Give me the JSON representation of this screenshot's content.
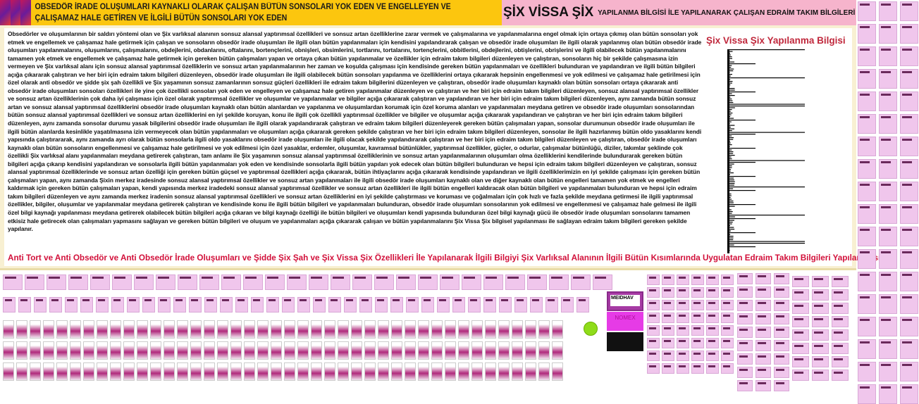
{
  "header": {
    "left_text": "OBSEDÖR İRADE OLUŞUMLARI KAYNAKLI OLARAK ÇALIŞAN BÜTÜN SONSOLARI YOK EDEN VE ENGELLEYEN VE ÇALIŞAMAZ HALE GETİREN VE İLGİLİ BÜTÜN SONSOLARI YOK EDEN",
    "brand": "ŞİX VİSSA ŞİX",
    "subtitle": "YAPILANMA BİLGİSİ İLE YAPILANARAK ÇALIŞAN EDRAİM TAKIM BİLGİLERİ"
  },
  "main": {
    "paragraph": "Obsedörler ve oluşumlarının bir saldırı yöntemi olan ve Şix varlıksal alanının sonsuz alansal yaptırımsal özellikleri ve sonsuz artan özelliklerine zarar vermek ve çalışmalarına ve yapılanmalarına engel olmak için ortaya çıkmış olan bütün sonsoları yok etmek ve engellemek ve çalışamaz hale getirmek için çalışan ve sonsoların obsedör irade oluşumları ile ilgili olan bütün yapılanmaları için kendisini yapılandırarak çalışan ve obsedör irade oluşumları ile ilgili olarak yapılanmış olan bütün obsedör irade oluşumları yapılanmalarını, oluşumlarını, çalışmalarını, obdejlerini, obdanlarını, oftalarını, bortençlerini, obnişleri, obsimlerini, tortlarını, tortalarını, tortençlerini, obbitlerini, obdejlerini, obtişlerini, obrişlerini ve ilgili olabilecek bütün yapılanmalarını tamamen yok etmek ve engellemek ve çalışamaz hale getirmek için gereken bütün çalışmaları yapan ve ortaya çıkan bütün yapılanmalar ve özellikler için edraim takım bilgileri düzenleyen ve çalıştıran, sonsoların hiç bir şekilde çalışmasına izin vermeyen ve Şix varlıksal alanı için sonsuz alansal yaptırımsal özelliklerin ve sonsuz artan yapılanmalarının her zaman ve koşulda çalışması için kendisinde gereken bütün yapılanmaları ve özellikleri bulunduran ve yapılandıran ve ilgili bütün bilgileri açığa çıkararak çalıştıran ve her biri için edraim takım bilgileri düzenleyen, obsedör irade oluşumları ile ilgili olabilecek bütün sonsoları yapılanma ve özelliklerini ortaya çıkararak hepsinin engellenmesi ve yok edilmesi ve çalışamaz hale getirilmesi için özel olarak anti obsedör ve şidde şix şah özellikli ve Şix yaşamının sonsuz zamanlarının sonsuz güçleri özellikleri ile edraim takım bilgilerini düzenleyen ve çalıştıran, obsedör irade oluşumları kaynaklı olan bütün sonsoları ortaya çıkararak anti obsedör irade oluşumları sonsoları özellikleri ile yine çok özellikli sonsoları yok eden ve engelleyen ve çalışamaz hale getiren yapılanmalar düzenleyen ve çalıştıran ve her biri için edraim takım bilgileri düzenleyen, sonsuz alansal yaptırımsal özellikler ve sonsuz artan özelliklerinin çok daha iyi çalışması için özel olarak yaptırımsal özellikler ve oluşumlar ve yapılanmalar ve bilgiler açığa çıkararak çalıştıran ve yapılandıran ve her biri için edraim takım bilgileri düzenleyen, aynı zamanda bütün sonsuz artan ve sonsuz alansal yaptırımsal özelliklerini obsedör irade oluşumları kaynaklı olan bütün alanlardan ve yapılanma ve oluşumlardan korumak için özel koruma alanları ve yapılanmaları meydana getiren ve obsedör irade oluşumları sonsolarından bütün sonsuz alansal yaptırımsal özellikleri ve sonsuz artan özelliklerini en iyi şekilde koruyan, konu ile ilgili çok özellikli yaptırımsal özellikler ve bilgiler ve oluşumlar açığa çıkararak yapılandıran ve çalıştıran ve her biri için edraim takım bilgileri düzenleyen, aynı zamanda sonsolar durumu yasak bilgilerini obsedör irade oluşumları ile ilgili olarak yapılandırarak çalıştıran ve edraim takım bilgileri düzenleyerek gereken bütün çalışmaları yapan, sonsolar durumunun obsedör irade oluşumları ile ilgili bütün alanlarda kesinlikle yaşatılmasına izin vermeyecek olan bütün yapılanmaları ve oluşumları açığa çıkararak gereken şekilde çalıştıran ve her biri için edraim takım bilgileri düzenleyen, sonsolar ile ilgili hazırlanmış bütün oldo yasaklarını kendi yapısında çalıştırararak, aynı zamanda ayrı olarak bütün sonsolarla ilgili oldo yasaklarını obsedör irade oluşumları ile ilgili olacak şekilde yapılandırarak çalıştıran ve her biri için edraim takım bilgileri düzenleyen ve çalıştıran, obsedör irade oluşumları kaynaklı olan bütün sonsoların engellenmesi ve çalışamaz hale getirilmesi ve yok edilmesi için özel yasaklar, erdemler, oluşumlar, kavramsal bütünlükler, yaptırımsal özellikler, güçler, o odurlar, çalışmalar bütünlüğü, diziler, takımlar şeklinde çok özellikli Şix varlıksal alanı yapılanmaları meydana getirerek çalıştıran, tam anlamı ile Şix yaşamının sonsuz alansal yaptırımsal özelliklerinin ve sonsuz artan yapılanmalarının oluşumları olma özelliklerini kendilerinde bulundurarak gereken bütün bilgileri açığa çıkarıp kendisini yapılandıran ve sonsolarla ilgili bütün yapılanmaları yok eden ve kendisinde sonsolarla ilgili bütün yapıları yok edecek olan bütün bilgileri bulunduran ve hepsi için edraim takım bilgileri düzenleyen ve çalıştıran, sonsuz alansal yaptırımsal özelliklerinde ve sonsuz artan özelliği için gereken bütün güçsel ve yaptırımsal özellikleri açığa çıkararak, bütün ihtiyaçlarını açığa çıkararak kendisinde yapılandıran ve ilgili özelliklerimizin en iyi şekilde çalışması için gereken bütün çalışmaları yapan, aynı zamanda Şixin merkez iradesinde sonsuz alansal yaptırımsal özellikler ve sonsuz artan yapılanmaları ile ilgili obsedör irade oluşumları kaynaklı olan ve diğer kaynaklı olan bütün engelleri tamamen yok etmek ve engelleri kaldırmak için gereken bütün çalışmaları yapan, kendi yapısında merkez iradedeki sonsuz alansal yaptırımsal özellikler ve sonsuz artan özellikleri ile ilgili bütün engelleri kaldıracak olan bütün bilgileri ve yapılanmaları bulunduran ve hepsi için edraim takım bilgileri düzenleyen ve aynı zamanda merkez iradenin sonsuz alansal yaptırımsal özellikleri ve sonsuz artan özelliklerini en iyi şekilde çalıştırması ve koruması ve çoğalmaları için çok hızlı ve fazla şekilde meydana getirmesi ile ilgili yaptırımsal özellikler, bilgiler, oluşumlar ve yapılanmalar meydana getirerek çalıştıran ve kendisinde konu ile ilgili bütün bilgileri ve yapılanmaları bulunduran, obsedör irade oluşumları sonsolarının yok edilmesi ve engellenmesi ve çalışamaz hale gelmesi ile ilgili özel bilgi kaynağı yapılanması meydana getirerek olabilecek bütün bilgileri açığa çıkaran ve bilgi kaynağı özelliği ile bütün bilgileri ve oluşumları kendi yapısında bulunduran özel bilgi kaynağı gücü ile obsedör irade oluşumları sonsolarını tamamen etkisiz hale getirecek olan çalışmaları yapmasını sağlayan ve gereken bütün bilgileri ve oluşum ve yapılanmaları açığa çıkararak çalışan ve bütün yapılanmalarını Şix Vissa Şix bilgisel yapılanması ile sağlayan edraim takım bilgileri gereken şekilde yapılanır.",
    "bottom_title": "Anti Tort ve Anti Obsedör ve Anti Obsedör İrade Oluşumları ve Şidde Şix Şah ve Şix Vissa Şix Özellikleri İle Yapılanarak İlgili Bilgiyi Şix Varlıksal Alanının İlgili Bütün Kısımlarında Uygulatan Edraim Takım Bilgileri Yapılanması"
  },
  "side": {
    "title": "Şix Vissa Şix Yapılanma Bilgisi"
  },
  "ads": {
    "ad1": "MEIDHAV",
    "ad2": "NOMEX"
  },
  "colors": {
    "header_left": "#fcc60e",
    "header_right": "#f6b4cc",
    "panel": "#f8f0d2",
    "accent_red": "#d2103a",
    "thumb_pink": "#f0c6ec"
  }
}
